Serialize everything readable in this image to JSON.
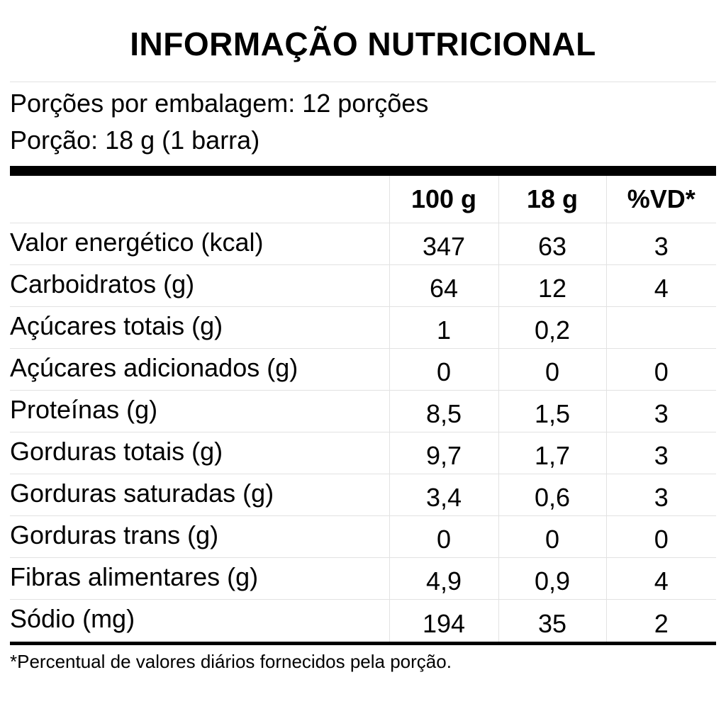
{
  "title": "INFORMAÇÃO NUTRICIONAL",
  "serving": {
    "per_package": "Porções por embalagem: 12 porções",
    "portion": "Porção: 18 g (1 barra)"
  },
  "columns": [
    "100 g",
    "18 g",
    "%VD*"
  ],
  "rows": [
    {
      "name": "Valor energético (kcal)",
      "per100": "347",
      "perPortion": "63",
      "vd": "3"
    },
    {
      "name": "Carboidratos (g)",
      "per100": "64",
      "perPortion": "12",
      "vd": "4"
    },
    {
      "name": "Açúcares totais (g)",
      "per100": "1",
      "perPortion": "0,2",
      "vd": ""
    },
    {
      "name": "Açúcares adicionados (g)",
      "per100": "0",
      "perPortion": "0",
      "vd": "0"
    },
    {
      "name": "Proteínas (g)",
      "per100": "8,5",
      "perPortion": "1,5",
      "vd": "3"
    },
    {
      "name": "Gorduras totais (g)",
      "per100": "9,7",
      "perPortion": "1,7",
      "vd": "3"
    },
    {
      "name": "Gorduras saturadas (g)",
      "per100": "3,4",
      "perPortion": "0,6",
      "vd": "3"
    },
    {
      "name": "Gorduras trans (g)",
      "per100": "0",
      "perPortion": "0",
      "vd": "0"
    },
    {
      "name": "Fibras alimentares (g)",
      "per100": "4,9",
      "perPortion": "0,9",
      "vd": "4"
    },
    {
      "name": "Sódio (mg)",
      "per100": "194",
      "perPortion": "35",
      "vd": "2"
    }
  ],
  "footnote": "*Percentual de valores diários fornecidos pela porção."
}
